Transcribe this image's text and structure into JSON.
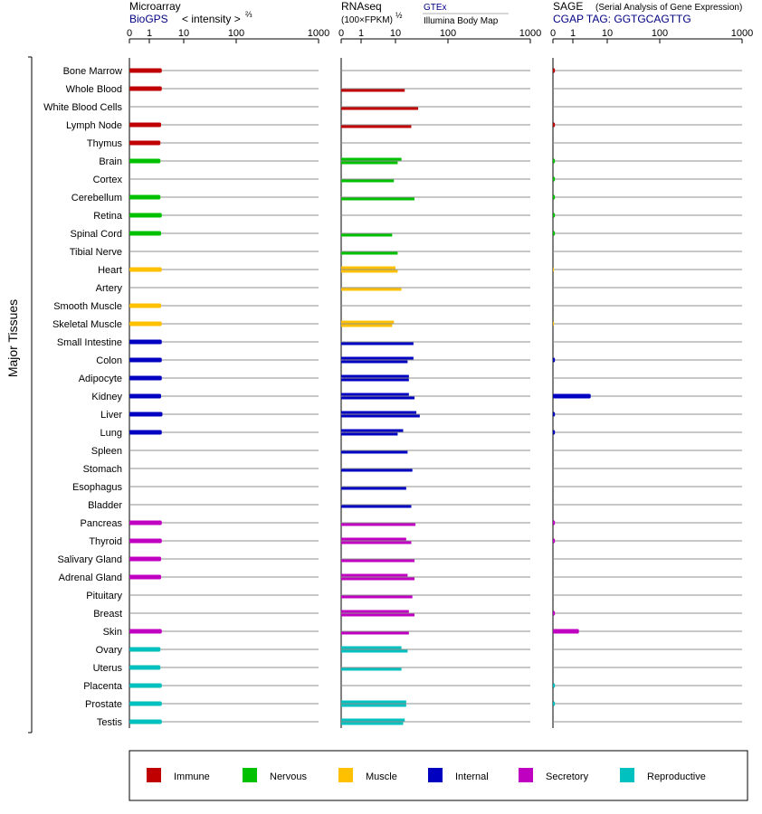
{
  "axis_label": "Major Tissues",
  "panels": [
    {
      "title": "Microarray",
      "subtitle": "BioGPS",
      "scale_label": "< intensity >",
      "scale_exp": "⅔",
      "ticks": [
        "0",
        "1",
        "10",
        "100",
        "1000"
      ]
    },
    {
      "title": "RNAseq",
      "subtitle": "(100×FPKM)",
      "scale_exp": "½",
      "source_top": "GTEx",
      "source_bottom": "Illumina Body Map",
      "ticks": [
        "0",
        "1",
        "10",
        "100",
        "1000"
      ]
    },
    {
      "title": "SAGE",
      "note": "(Serial Analysis of Gene Expression)",
      "subtitle": "CGAP TAG: GGTGCAGTTG",
      "ticks": [
        "0",
        "1",
        "10",
        "100",
        "1000"
      ]
    }
  ],
  "legend": [
    {
      "label": "Immune",
      "color": "#c00000"
    },
    {
      "label": "Nervous",
      "color": "#00c000"
    },
    {
      "label": "Muscle",
      "color": "#ffc000"
    },
    {
      "label": "Internal",
      "color": "#0000c0"
    },
    {
      "label": "Secretory",
      "color": "#c000c0"
    },
    {
      "label": "Reproductive",
      "color": "#00c0c0"
    }
  ],
  "chart_data": {
    "type": "bar",
    "scale": "signed log10 (0, 1, 10, 100, 1000)",
    "categories": [
      "Bone Marrow",
      "Whole Blood",
      "White Blood Cells",
      "Lymph Node",
      "Thymus",
      "Brain",
      "Cortex",
      "Cerebellum",
      "Retina",
      "Spinal Cord",
      "Tibial Nerve",
      "Heart",
      "Artery",
      "Smooth Muscle",
      "Skeletal Muscle",
      "Small Intestine",
      "Colon",
      "Adipocyte",
      "Kidney",
      "Liver",
      "Lung",
      "Spleen",
      "Stomach",
      "Esophagus",
      "Bladder",
      "Pancreas",
      "Thyroid",
      "Salivary Gland",
      "Adrenal Gland",
      "Pituitary",
      "Breast",
      "Skin",
      "Ovary",
      "Uterus",
      "Placenta",
      "Prostate",
      "Testis"
    ],
    "groups": [
      "Immune",
      "Immune",
      "Immune",
      "Immune",
      "Immune",
      "Nervous",
      "Nervous",
      "Nervous",
      "Nervous",
      "Nervous",
      "Nervous",
      "Muscle",
      "Muscle",
      "Muscle",
      "Muscle",
      "Internal",
      "Internal",
      "Internal",
      "Internal",
      "Internal",
      "Internal",
      "Internal",
      "Internal",
      "Internal",
      "Internal",
      "Secretory",
      "Secretory",
      "Secretory",
      "Secretory",
      "Secretory",
      "Secretory",
      "Secretory",
      "Reproductive",
      "Reproductive",
      "Reproductive",
      "Reproductive",
      "Reproductive"
    ],
    "microarray": [
      2.3,
      2.3,
      null,
      2.2,
      2.1,
      2.1,
      null,
      2.1,
      2.3,
      2.2,
      null,
      2.3,
      null,
      2.2,
      2.3,
      2.3,
      2.3,
      2.3,
      2.2,
      2.4,
      2.3,
      null,
      null,
      null,
      null,
      2.3,
      2.3,
      2.2,
      2.2,
      null,
      null,
      2.3,
      2.1,
      2.1,
      2.3,
      2.3,
      2.3
    ],
    "rnaseq": [
      [],
      [
        15
      ],
      [
        27
      ],
      [
        20
      ],
      [],
      [
        13,
        11
      ],
      [
        9
      ],
      [
        23
      ],
      [],
      [
        8
      ],
      [
        11
      ],
      [
        10,
        11
      ],
      [
        13
      ],
      [],
      [
        9,
        8
      ],
      [
        22
      ],
      [
        22,
        17
      ],
      [
        18,
        18
      ],
      [
        18,
        23
      ],
      [
        25,
        29
      ],
      [
        14,
        11
      ],
      [
        17
      ],
      [
        21
      ],
      [
        16
      ],
      [
        20
      ],
      [
        24
      ],
      [
        16,
        20
      ],
      [
        23
      ],
      [
        17,
        23
      ],
      [
        21
      ],
      [
        18,
        23
      ],
      [
        18
      ],
      [
        13,
        17
      ],
      [
        13
      ],
      [],
      [
        16,
        16
      ],
      [
        15,
        14
      ]
    ],
    "sage": [
      0.1,
      null,
      null,
      0.1,
      null,
      0.1,
      0.1,
      0.1,
      0.1,
      0.1,
      null,
      0.05,
      null,
      null,
      0.05,
      null,
      0.1,
      null,
      3.3,
      0.1,
      0.1,
      null,
      null,
      null,
      null,
      0.1,
      0.1,
      null,
      null,
      null,
      0.1,
      1.5,
      null,
      null,
      0.1,
      0.1,
      null
    ]
  }
}
